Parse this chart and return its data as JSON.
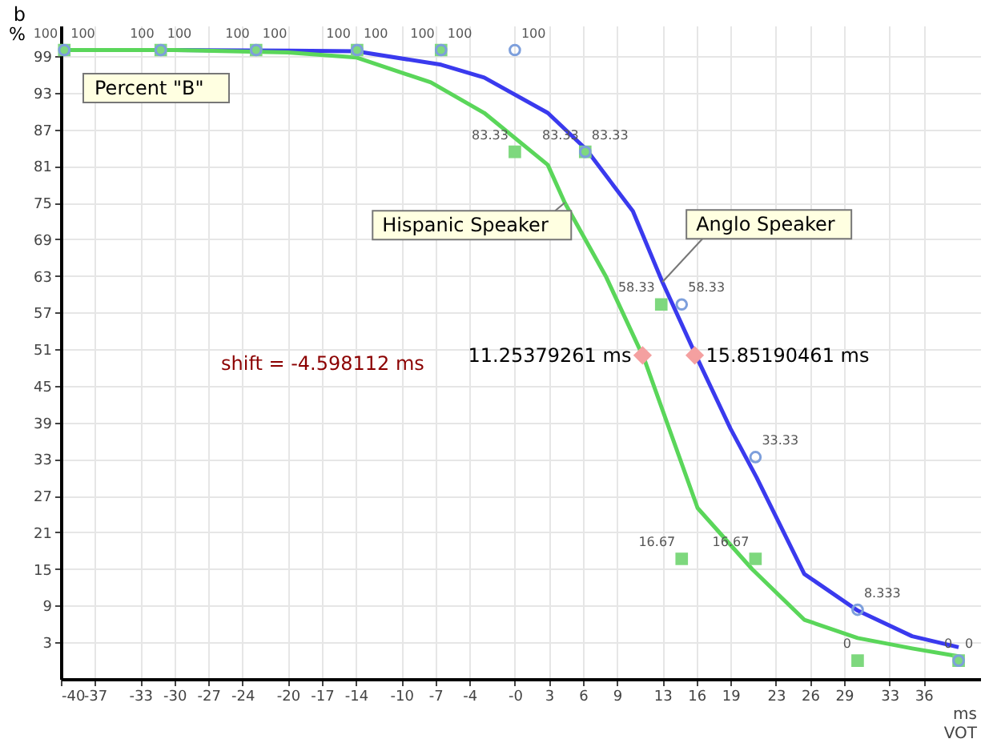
{
  "chart_data": {
    "type": "line",
    "title": "Percent \"B\"",
    "xlabel": "VOT",
    "ylabel": "%",
    "xlim": [
      -40,
      41
    ],
    "ylim": [
      -3,
      104
    ],
    "xticks": [
      -40,
      -37,
      -33,
      -30,
      -27,
      -24,
      -20,
      -17,
      -14,
      -10,
      -7,
      -4,
      {
        "value": 0,
        "label": "-0"
      },
      3,
      6,
      9,
      13,
      16,
      19,
      23,
      26,
      29,
      33,
      36
    ],
    "yticks": [
      3,
      9,
      15,
      21,
      27,
      33,
      39,
      45,
      51,
      57,
      63,
      69,
      75,
      81,
      87,
      93,
      99
    ],
    "grid": true,
    "series": [
      {
        "name": "Anglo Speaker",
        "color": "#3a3aee",
        "x": [
          -40,
          -30,
          -20,
          -14,
          -6.5,
          -2.7,
          2.9,
          6.3,
          10.4,
          13,
          16.1,
          19,
          21.3,
          25.5,
          30.2,
          35,
          39.1
        ],
        "values": [
          100,
          100,
          99.9,
          99.8,
          97.6,
          95.5,
          89.7,
          83.7,
          73.6,
          62,
          49.4,
          38,
          30,
          14.2,
          8.2,
          4,
          2.2
        ]
      },
      {
        "name": "Hispanic Speaker",
        "color": "#5ad65a",
        "x": [
          -40,
          -30,
          -20,
          -14,
          -7.4,
          -2.7,
          2.9,
          4.4,
          8,
          11.4,
          16.1,
          20.9,
          25.5,
          30.2,
          35,
          39.1
        ],
        "values": [
          100,
          100,
          99.6,
          98.8,
          94.7,
          89.7,
          81.2,
          75,
          63,
          49.4,
          25,
          15,
          6.7,
          3.7,
          2,
          0.7
        ]
      },
      {
        "type": "scatter",
        "marker": "square",
        "color": "#7ed87e",
        "x": [
          -39.7,
          -31.2,
          -22.8,
          -13.9,
          -6.5,
          0,
          6.2,
          12.9,
          14.7,
          21.2,
          30.2,
          39.1
        ],
        "values": [
          100,
          100,
          100,
          100,
          100,
          83.33,
          83.33,
          58.33,
          16.67,
          16.67,
          0,
          0
        ],
        "value_labels": [
          "100",
          "100",
          "100",
          "100",
          "100",
          "83.33",
          "83.33",
          "58.33",
          "16.67",
          "16.67",
          "0",
          "0"
        ]
      },
      {
        "type": "scatter",
        "marker": "circle",
        "color": "#7d9fdc",
        "x": [
          -39.7,
          -31.2,
          -22.8,
          -13.9,
          -6.5,
          0,
          6.2,
          14.7,
          21.2,
          30.2,
          39.1
        ],
        "values": [
          100,
          100,
          100,
          100,
          100,
          100,
          83.33,
          58.33,
          33.33,
          8.333,
          0
        ],
        "value_labels": [
          "100",
          "100",
          "100",
          "100",
          "100",
          "100",
          "83.33",
          "58.33",
          "33.33",
          "8.333",
          "0"
        ]
      },
      {
        "type": "scatter",
        "marker": "diamond",
        "color": "#f4a0a0",
        "x": [
          11.25379261,
          15.85190461
        ],
        "values": [
          50,
          50
        ]
      }
    ],
    "annotations": [
      {
        "text": "11.25379261 ms",
        "x": 11.25379261,
        "y": 50
      },
      {
        "text": "15.85190461 ms",
        "x": 15.85190461,
        "y": 50
      },
      "shift = -4.598112 ms",
      "ms",
      "b"
    ]
  }
}
